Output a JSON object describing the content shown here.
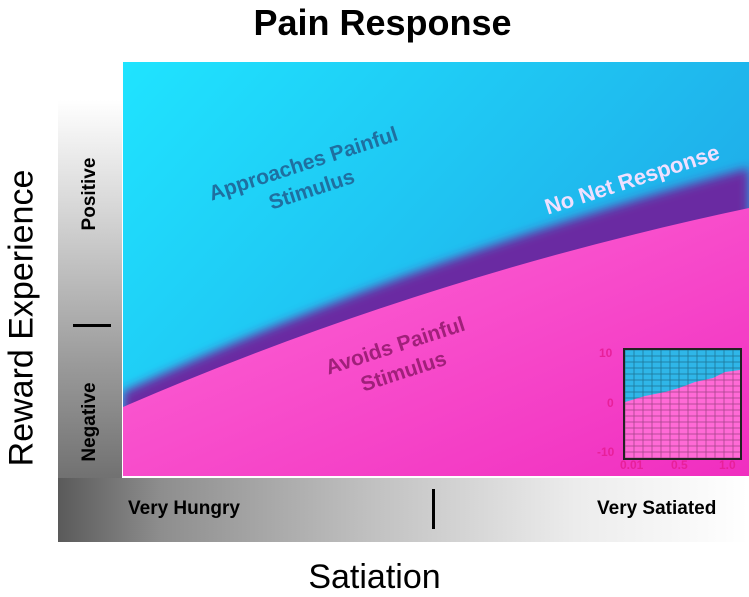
{
  "title": "Pain Response",
  "y_axis_label": "Reward Experience",
  "x_axis_label": "Satiation",
  "y_scale": {
    "positive_label": "Positive",
    "negative_label": "Negative"
  },
  "x_scale": {
    "low_label": "Very Hungry",
    "high_label": "Very Satiated"
  },
  "regions": {
    "approach": {
      "line1": "Approaches Painful",
      "line2": "Stimulus",
      "color": "#1fb4e8",
      "text_color": "#1f6fa0"
    },
    "avoid": {
      "line1": "Avoids Painful",
      "line2": "Stimulus",
      "color": "#ff55cc",
      "text_color": "#a0207a"
    },
    "boundary": {
      "label": "No Net Response",
      "color": "#7a2fa8",
      "text_color": "#f0e0ff"
    }
  },
  "inset": {
    "y_ticks": [
      "10",
      "0",
      "-10"
    ],
    "x_ticks": [
      "0.01",
      "0.5",
      "1.0"
    ],
    "tick_color": "#e8209a"
  }
}
